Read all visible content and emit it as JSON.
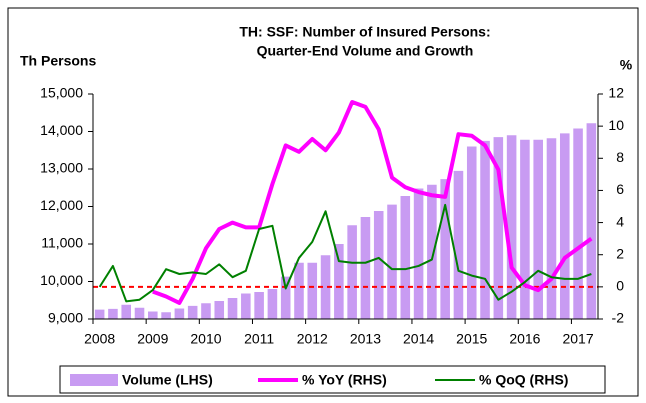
{
  "chart_data": {
    "type": "bar_line_dual_axis",
    "title": "TH: SSF: Number of Insured Persons:",
    "subtitle": "Quarter-End Volume and Growth",
    "y_label": "Th Persons",
    "y2_label": "%",
    "categories": [
      "2008",
      null,
      null,
      null,
      "2009",
      null,
      null,
      null,
      "2010",
      null,
      null,
      null,
      "2011",
      null,
      null,
      null,
      "2012",
      null,
      null,
      null,
      "2013",
      null,
      null,
      null,
      "2014",
      null,
      null,
      null,
      "2015",
      null,
      null,
      null,
      "2016",
      null,
      null,
      null,
      "2017",
      null
    ],
    "series": [
      {
        "name": "Volume (LHS)",
        "type": "bar",
        "color": "#c89bf2",
        "axis": "y",
        "values": [
          9250,
          9270,
          9380,
          9300,
          9200,
          9180,
          9280,
          9350,
          9420,
          9480,
          9560,
          9680,
          9720,
          9800,
          10130,
          10500,
          10500,
          10700,
          11000,
          11500,
          11720,
          11880,
          12050,
          12280,
          12480,
          12580,
          12730,
          12950,
          13600,
          13750,
          13850,
          13900,
          13780,
          13780,
          13820,
          13950,
          14080,
          14220
        ]
      },
      {
        "name": "% YoY (RHS)",
        "type": "line",
        "color": "#ff00ff",
        "axis": "y2",
        "values": [
          null,
          null,
          null,
          null,
          -0.3,
          -0.6,
          -1.0,
          0.5,
          2.4,
          3.6,
          4.0,
          3.7,
          3.7,
          6.4,
          8.8,
          8.4,
          9.2,
          8.5,
          9.6,
          11.5,
          11.2,
          9.8,
          6.8,
          6.2,
          5.9,
          5.7,
          5.6,
          9.5,
          9.4,
          8.8,
          7.3,
          1.2,
          0.1,
          -0.2,
          0.5,
          1.8,
          2.4,
          3.0
        ]
      },
      {
        "name": "% QoQ (RHS)",
        "type": "line",
        "color": "#008000",
        "axis": "y2",
        "values": [
          0.0,
          1.3,
          -0.9,
          -0.8,
          -0.2,
          1.1,
          0.8,
          0.9,
          0.8,
          1.4,
          0.6,
          1.0,
          3.6,
          3.8,
          -0.1,
          1.8,
          2.8,
          4.7,
          1.6,
          1.5,
          1.5,
          1.8,
          1.1,
          1.1,
          1.3,
          1.7,
          5.1,
          1.0,
          0.7,
          0.5,
          -0.8,
          -0.3,
          0.3,
          1.0,
          0.6,
          0.5,
          0.5,
          0.8
        ]
      }
    ],
    "reference_line": {
      "value": 0,
      "axis": "y2",
      "color": "#ff0000"
    },
    "ylim": [
      9000,
      15000
    ],
    "yticks": [
      {
        "value": 9000,
        "label": "9,000"
      },
      {
        "value": 10000,
        "label": "10,000"
      },
      {
        "value": 11000,
        "label": "11,000"
      },
      {
        "value": 12000,
        "label": "12,000"
      },
      {
        "value": 13000,
        "label": "13,000"
      },
      {
        "value": 14000,
        "label": "14,000"
      },
      {
        "value": 15000,
        "label": "15,000"
      }
    ],
    "y2lim": [
      -2,
      12
    ],
    "y2ticks": [
      -2,
      0,
      2,
      4,
      6,
      8,
      10,
      12
    ],
    "legend": "bottom"
  }
}
